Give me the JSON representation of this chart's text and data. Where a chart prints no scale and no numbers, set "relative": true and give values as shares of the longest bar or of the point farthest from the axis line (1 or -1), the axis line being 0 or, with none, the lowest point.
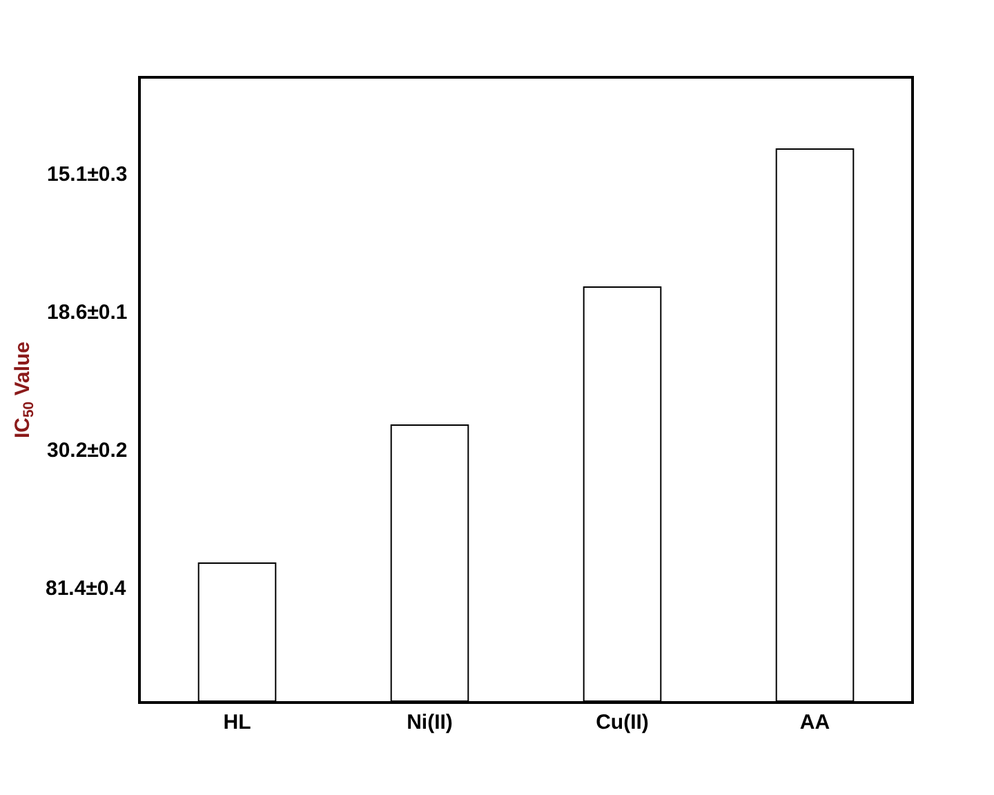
{
  "chart_data": {
    "type": "bar",
    "relative": true,
    "ylabel": "IC$_{50}$ Value",
    "categories": [
      "HL",
      "Ni(II)",
      "Cu(II)",
      "AA"
    ],
    "values": [
      0.25,
      0.5,
      0.75,
      1.0
    ],
    "annotations": [
      "81.4±0.4",
      "30.2±0.2",
      "18.6±0.1",
      "15.1±0.3"
    ],
    "color": "#ffffff",
    "legend": false
  }
}
